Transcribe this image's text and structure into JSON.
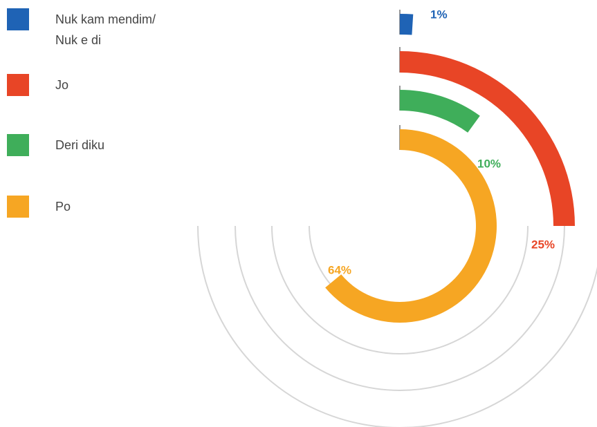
{
  "chart_data": {
    "type": "radial_bar",
    "categories": [
      "Nuk kam mendim/ Nuk e di",
      "Jo",
      "Deri diku",
      "Po"
    ],
    "values": [
      1,
      25,
      10,
      64
    ],
    "value_labels": [
      "1%",
      "25%",
      "10%",
      "64%"
    ],
    "colors": [
      "#1f63b5",
      "#e84526",
      "#3fae5a",
      "#f6a623"
    ]
  }
}
